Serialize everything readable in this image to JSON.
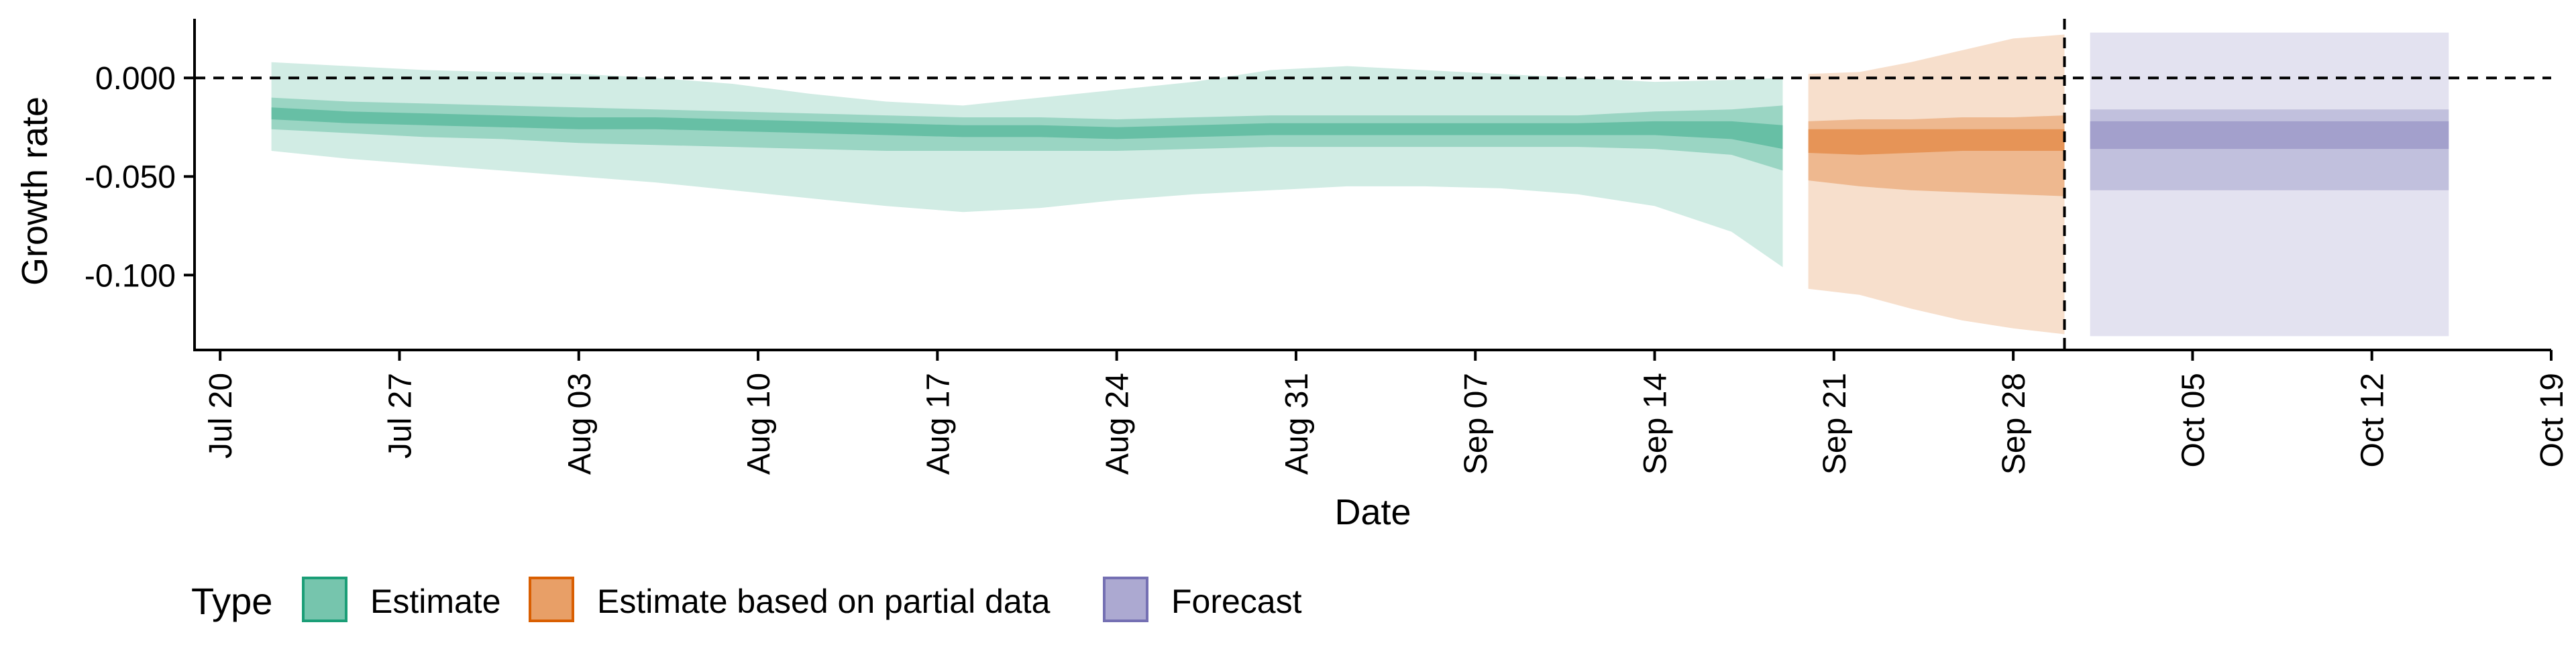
{
  "chart_data": {
    "type": "area",
    "xlabel": "Date",
    "ylabel": "Growth rate",
    "x_tick_labels": [
      "Jul 20",
      "Jul 27",
      "Aug 03",
      "Aug 10",
      "Aug 17",
      "Aug 24",
      "Aug 31",
      "Sep 07",
      "Sep 14",
      "Sep 21",
      "Sep 28",
      "Oct 05",
      "Oct 12",
      "Oct 19"
    ],
    "x_tick_dates": [
      "2020-07-20",
      "2020-07-27",
      "2020-08-03",
      "2020-08-10",
      "2020-08-17",
      "2020-08-24",
      "2020-08-31",
      "2020-09-07",
      "2020-09-14",
      "2020-09-21",
      "2020-09-28",
      "2020-10-05",
      "2020-10-12",
      "2020-10-19"
    ],
    "x_range": [
      "2020-07-19",
      "2020-10-19"
    ],
    "y_tick_labels": [
      "0.000",
      "-0.050",
      "-0.100"
    ],
    "y_tick_values": [
      0.0,
      -0.05,
      -0.1
    ],
    "ylim": [
      -0.138,
      0.03
    ],
    "grid": false,
    "reference_lines": [
      {
        "axis": "y",
        "value": 0.0,
        "style": "dashed"
      },
      {
        "axis": "x",
        "value": "2020-09-30",
        "style": "dashed"
      }
    ],
    "legend": {
      "title": "Type",
      "position": "bottom-left"
    },
    "colors": {
      "Estimate": "#1b9e77",
      "Estimate based on partial data": "#d95f02",
      "Forecast": "#7570b3"
    },
    "series": [
      {
        "name": "Estimate",
        "dates": [
          "2020-07-22",
          "2020-07-25",
          "2020-07-28",
          "2020-07-31",
          "2020-08-03",
          "2020-08-06",
          "2020-08-09",
          "2020-08-12",
          "2020-08-15",
          "2020-08-18",
          "2020-08-21",
          "2020-08-24",
          "2020-08-27",
          "2020-08-30",
          "2020-09-02",
          "2020-09-05",
          "2020-09-08",
          "2020-09-11",
          "2020-09-14",
          "2020-09-17",
          "2020-09-19"
        ],
        "median": [
          -0.018,
          -0.02,
          -0.021,
          -0.022,
          -0.023,
          -0.023,
          -0.024,
          -0.025,
          -0.026,
          -0.027,
          -0.027,
          -0.028,
          -0.027,
          -0.026,
          -0.026,
          -0.026,
          -0.026,
          -0.026,
          -0.025,
          -0.026,
          -0.03
        ],
        "lower_20": [
          -0.021,
          -0.023,
          -0.024,
          -0.025,
          -0.026,
          -0.026,
          -0.027,
          -0.028,
          -0.029,
          -0.03,
          -0.03,
          -0.031,
          -0.03,
          -0.029,
          -0.029,
          -0.029,
          -0.029,
          -0.029,
          -0.029,
          -0.031,
          -0.036
        ],
        "upper_20": [
          -0.015,
          -0.017,
          -0.018,
          -0.019,
          -0.02,
          -0.02,
          -0.021,
          -0.022,
          -0.023,
          -0.024,
          -0.024,
          -0.025,
          -0.024,
          -0.023,
          -0.023,
          -0.023,
          -0.023,
          -0.023,
          -0.022,
          -0.022,
          -0.024
        ],
        "lower_50": [
          -0.026,
          -0.028,
          -0.03,
          -0.031,
          -0.033,
          -0.034,
          -0.035,
          -0.036,
          -0.037,
          -0.037,
          -0.037,
          -0.037,
          -0.036,
          -0.035,
          -0.035,
          -0.035,
          -0.035,
          -0.035,
          -0.036,
          -0.039,
          -0.047
        ],
        "upper_50": [
          -0.01,
          -0.012,
          -0.013,
          -0.014,
          -0.015,
          -0.016,
          -0.017,
          -0.018,
          -0.019,
          -0.02,
          -0.02,
          -0.021,
          -0.02,
          -0.019,
          -0.019,
          -0.019,
          -0.019,
          -0.019,
          -0.017,
          -0.016,
          -0.014
        ],
        "lower_90": [
          -0.037,
          -0.041,
          -0.044,
          -0.047,
          -0.05,
          -0.053,
          -0.057,
          -0.061,
          -0.065,
          -0.068,
          -0.066,
          -0.062,
          -0.059,
          -0.057,
          -0.055,
          -0.055,
          -0.056,
          -0.059,
          -0.065,
          -0.078,
          -0.096
        ],
        "upper_90": [
          0.008,
          0.006,
          0.004,
          0.003,
          0.002,
          0.0,
          -0.003,
          -0.008,
          -0.012,
          -0.014,
          -0.01,
          -0.006,
          -0.002,
          0.004,
          0.006,
          0.004,
          0.002,
          0.0,
          -0.002,
          -0.001,
          0.0
        ]
      },
      {
        "name": "Estimate based on partial data",
        "dates": [
          "2020-09-20",
          "2020-09-22",
          "2020-09-24",
          "2020-09-26",
          "2020-09-28",
          "2020-09-30"
        ],
        "median": [
          -0.032,
          -0.033,
          -0.033,
          -0.032,
          -0.032,
          -0.032
        ],
        "lower_20": [
          -0.038,
          -0.039,
          -0.038,
          -0.037,
          -0.037,
          -0.037
        ],
        "upper_20": [
          -0.026,
          -0.026,
          -0.026,
          -0.026,
          -0.026,
          -0.026
        ],
        "lower_50": [
          -0.052,
          -0.055,
          -0.057,
          -0.058,
          -0.059,
          -0.06
        ],
        "upper_50": [
          -0.022,
          -0.021,
          -0.021,
          -0.02,
          -0.02,
          -0.019
        ],
        "lower_90": [
          -0.107,
          -0.11,
          -0.117,
          -0.123,
          -0.127,
          -0.13
        ],
        "upper_90": [
          0.002,
          0.003,
          0.008,
          0.014,
          0.02,
          0.022
        ]
      },
      {
        "name": "Forecast",
        "dates": [
          "2020-10-01",
          "2020-10-15"
        ],
        "median": [
          -0.029,
          -0.029
        ],
        "lower_20": [
          -0.036,
          -0.036
        ],
        "upper_20": [
          -0.022,
          -0.022
        ],
        "lower_50": [
          -0.057,
          -0.057
        ],
        "upper_50": [
          -0.016,
          -0.016
        ],
        "lower_90": [
          -0.131,
          -0.131
        ],
        "upper_90": [
          0.023,
          0.023
        ]
      }
    ]
  }
}
